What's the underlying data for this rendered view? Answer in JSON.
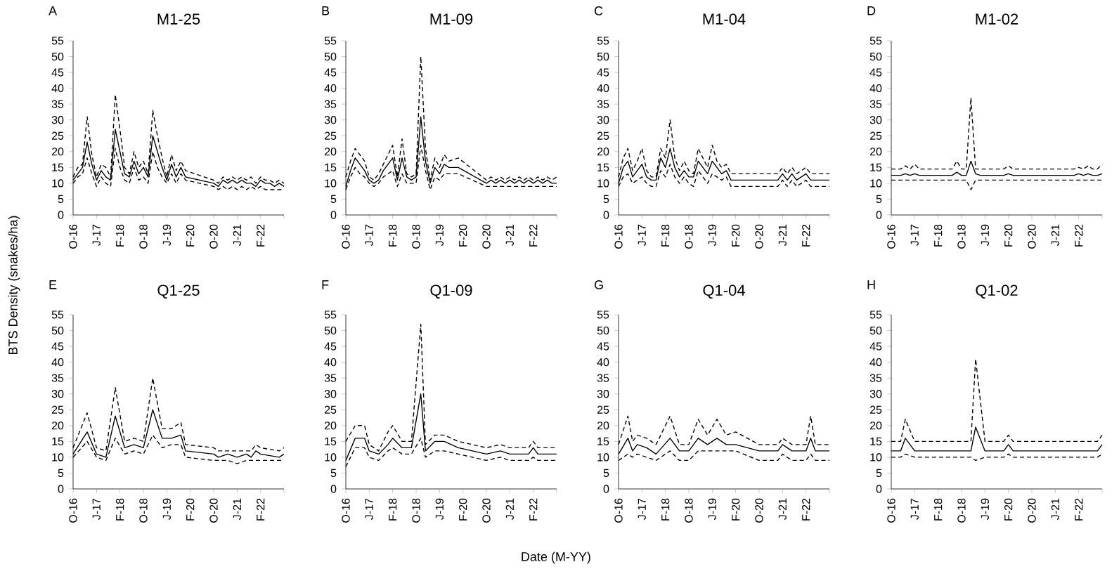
{
  "chart_data": [
    {
      "type": "line",
      "title": "M1-25",
      "annotations": [
        "A"
      ],
      "ylabel": "BTS Density (snakes/ha)",
      "ylim": [
        0,
        55
      ],
      "yticks": [
        0,
        5,
        10,
        15,
        20,
        25,
        30,
        35,
        40,
        45,
        50,
        55
      ],
      "categories": [
        "O-16",
        null,
        null,
        null,
        null,
        "J-17",
        null,
        null,
        null,
        null,
        "F-18",
        null,
        null,
        null,
        null,
        "O-18",
        null,
        null,
        null,
        null,
        "J-19",
        null,
        null,
        null,
        null,
        "F-20",
        null,
        null,
        null,
        null,
        "O-20",
        null,
        null,
        null,
        null,
        "J-21",
        null,
        null,
        null,
        null,
        "F-22",
        null,
        null,
        null,
        null,
        null
      ],
      "series": [
        {
          "color": "#000000",
          "line_style": "dashed",
          "values": [
            12,
            15,
            16,
            31,
            19,
            12,
            16,
            15,
            12,
            38,
            27,
            15,
            13,
            20,
            15,
            17,
            13,
            33,
            25,
            18,
            12,
            19,
            14,
            17,
            14,
            null,
            null,
            null,
            null,
            null,
            11,
            10,
            12,
            11,
            12,
            11,
            12,
            11,
            12,
            10,
            12,
            11,
            11,
            10,
            11,
            10
          ]
        },
        {
          "color": "#000000",
          "line_style": "solid",
          "values": [
            11,
            13,
            15,
            23,
            16,
            11,
            14,
            12,
            11,
            27,
            20,
            13,
            12,
            17,
            13,
            15,
            12,
            25,
            20,
            15,
            11,
            16,
            12,
            15,
            12,
            null,
            null,
            null,
            null,
            null,
            10,
            9,
            11,
            10,
            11,
            10,
            11,
            10,
            10,
            9,
            11,
            10,
            10,
            9,
            10,
            9
          ]
        },
        {
          "color": "#000000",
          "line_style": "dashed",
          "values": [
            10,
            12,
            13,
            18,
            13,
            9,
            12,
            10,
            9,
            21,
            15,
            11,
            10,
            15,
            11,
            12,
            10,
            20,
            15,
            12,
            10,
            13,
            10,
            13,
            11,
            null,
            null,
            null,
            null,
            null,
            9,
            8,
            9,
            8,
            9,
            8,
            9,
            8,
            9,
            8,
            9,
            8,
            8,
            8,
            8,
            8
          ]
        }
      ]
    },
    {
      "type": "line",
      "title": "M1-09",
      "annotations": [
        "B"
      ],
      "ylim": [
        0,
        55
      ],
      "yticks": [
        0,
        5,
        10,
        15,
        20,
        25,
        30,
        35,
        40,
        45,
        50,
        55
      ],
      "categories": [
        "O-16",
        null,
        null,
        null,
        null,
        "J-17",
        null,
        null,
        null,
        null,
        "F-18",
        null,
        null,
        null,
        null,
        "O-18",
        null,
        null,
        null,
        null,
        "J-19",
        null,
        null,
        null,
        null,
        "F-20",
        null,
        null,
        null,
        null,
        "O-20",
        null,
        null,
        null,
        null,
        "J-21",
        null,
        null,
        null,
        null,
        "F-22",
        null,
        null,
        null,
        null,
        null
      ],
      "series": [
        {
          "color": "#000000",
          "line_style": "dashed",
          "values": [
            12,
            17,
            21,
            19,
            17,
            12,
            11,
            13,
            16,
            19,
            22,
            12,
            24,
            13,
            12,
            13,
            50,
            21,
            11,
            18,
            15,
            19,
            17,
            null,
            18,
            null,
            null,
            null,
            null,
            null,
            11,
            12,
            11,
            12,
            11,
            12,
            11,
            12,
            11,
            12,
            11,
            12,
            11,
            12,
            11,
            12
          ]
        },
        {
          "color": "#000000",
          "line_style": "solid",
          "values": [
            9,
            14,
            18,
            16,
            14,
            11,
            10,
            11,
            14,
            16,
            18,
            11,
            18,
            12,
            11,
            12,
            31,
            17,
            10,
            15,
            13,
            16,
            15,
            null,
            15,
            null,
            null,
            null,
            null,
            null,
            10,
            11,
            10,
            11,
            10,
            11,
            10,
            11,
            10,
            11,
            10,
            11,
            10,
            11,
            10,
            10
          ]
        },
        {
          "color": "#000000",
          "line_style": "dashed",
          "values": [
            8,
            12,
            15,
            13,
            12,
            10,
            9,
            10,
            12,
            13,
            14,
            9,
            13,
            10,
            10,
            10,
            22,
            14,
            8,
            12,
            11,
            13,
            13,
            null,
            13,
            null,
            null,
            null,
            null,
            null,
            9,
            9,
            9,
            9,
            9,
            9,
            9,
            9,
            9,
            9,
            9,
            9,
            9,
            9,
            9,
            9
          ]
        }
      ]
    },
    {
      "type": "line",
      "title": "M1-04",
      "annotations": [
        "C"
      ],
      "ylim": [
        0,
        55
      ],
      "yticks": [
        0,
        5,
        10,
        15,
        20,
        25,
        30,
        35,
        40,
        45,
        50,
        55
      ],
      "categories": [
        "O-16",
        null,
        null,
        null,
        null,
        "J-17",
        null,
        null,
        null,
        null,
        "F-18",
        null,
        null,
        null,
        null,
        "O-18",
        null,
        null,
        null,
        null,
        "J-19",
        null,
        null,
        null,
        null,
        "F-20",
        null,
        null,
        null,
        null,
        "O-20",
        null,
        null,
        null,
        null,
        "J-21",
        null,
        null,
        null,
        null,
        "F-22",
        null,
        null,
        null,
        null,
        null
      ],
      "series": [
        {
          "color": "#000000",
          "line_style": "dashed",
          "values": [
            12,
            18,
            21,
            14,
            17,
            21,
            14,
            12,
            12,
            21,
            18,
            30,
            18,
            14,
            17,
            14,
            13,
            21,
            18,
            15,
            22,
            17,
            15,
            16,
            13,
            null,
            null,
            null,
            null,
            null,
            null,
            null,
            null,
            null,
            13,
            15,
            13,
            15,
            13,
            14,
            15,
            13,
            13,
            13,
            13,
            13
          ]
        },
        {
          "color": "#000000",
          "line_style": "solid",
          "values": [
            10,
            15,
            17,
            12,
            14,
            16,
            12,
            11,
            11,
            18,
            15,
            21,
            15,
            12,
            14,
            12,
            12,
            17,
            15,
            13,
            17,
            15,
            13,
            14,
            11,
            null,
            null,
            null,
            null,
            null,
            null,
            null,
            null,
            null,
            11,
            13,
            11,
            13,
            11,
            12,
            13,
            11,
            11,
            11,
            11,
            11
          ]
        },
        {
          "color": "#000000",
          "line_style": "dashed",
          "values": [
            9,
            12,
            13,
            10,
            11,
            12,
            10,
            9,
            9,
            14,
            12,
            16,
            12,
            10,
            12,
            10,
            9,
            14,
            12,
            10,
            13,
            12,
            11,
            12,
            9,
            null,
            null,
            null,
            null,
            null,
            null,
            null,
            null,
            null,
            9,
            11,
            9,
            11,
            9,
            10,
            11,
            9,
            9,
            9,
            9,
            9
          ]
        }
      ]
    },
    {
      "type": "line",
      "title": "M1-02",
      "annotations": [
        "D"
      ],
      "ylim": [
        0,
        55
      ],
      "yticks": [
        0,
        5,
        10,
        15,
        20,
        25,
        30,
        35,
        40,
        45,
        50,
        55
      ],
      "categories": [
        "O-16",
        null,
        null,
        null,
        null,
        "J-17",
        null,
        null,
        null,
        null,
        "F-18",
        null,
        null,
        null,
        null,
        "O-18",
        null,
        null,
        null,
        null,
        "J-19",
        null,
        null,
        null,
        null,
        "F-20",
        null,
        null,
        null,
        null,
        "O-20",
        null,
        null,
        null,
        null,
        "J-21",
        null,
        null,
        null,
        null,
        "F-22",
        null,
        null,
        null,
        null,
        null
      ],
      "series": [
        {
          "color": "#000000",
          "line_style": "dashed",
          "values": [
            14.5,
            null,
            14.5,
            15.5,
            14.5,
            16,
            14.5,
            null,
            null,
            null,
            null,
            null,
            null,
            14.5,
            17,
            14.5,
            14.5,
            37,
            14.5,
            14.5,
            null,
            null,
            null,
            null,
            14.5,
            15.5,
            14.5,
            null,
            null,
            null,
            null,
            null,
            null,
            null,
            null,
            null,
            null,
            null,
            null,
            14.5,
            15,
            14.5,
            15.5,
            14.5,
            14.5,
            16
          ]
        },
        {
          "color": "#000000",
          "line_style": "solid",
          "values": [
            12.5,
            null,
            12.5,
            13,
            12.5,
            13,
            12.5,
            null,
            null,
            null,
            null,
            null,
            null,
            12.5,
            13.5,
            12.5,
            12.5,
            17,
            13,
            12.5,
            null,
            null,
            null,
            null,
            12.5,
            13,
            12.5,
            null,
            null,
            null,
            null,
            null,
            null,
            null,
            null,
            null,
            null,
            null,
            null,
            12.5,
            13,
            12.5,
            13,
            12.5,
            12.5,
            13
          ]
        },
        {
          "color": "#000000",
          "line_style": "dashed",
          "values": [
            11,
            null,
            11,
            11,
            11,
            11,
            11,
            null,
            null,
            null,
            null,
            null,
            null,
            11,
            11,
            11,
            11,
            8,
            11,
            11,
            null,
            null,
            null,
            null,
            11,
            11,
            11,
            null,
            null,
            null,
            null,
            null,
            null,
            null,
            null,
            null,
            null,
            null,
            null,
            11,
            11,
            11,
            11,
            11,
            11,
            11
          ]
        }
      ]
    },
    {
      "type": "line",
      "title": "Q1-25",
      "annotations": [
        "E"
      ],
      "ylim": [
        0,
        55
      ],
      "yticks": [
        0,
        5,
        10,
        15,
        20,
        25,
        30,
        35,
        40,
        45,
        50,
        55
      ],
      "categories": [
        "O-16",
        null,
        null,
        null,
        null,
        "J-17",
        null,
        null,
        null,
        null,
        "F-18",
        null,
        null,
        null,
        null,
        "O-18",
        null,
        null,
        null,
        null,
        "J-19",
        null,
        null,
        null,
        null,
        "F-20",
        null,
        null,
        null,
        null,
        "O-20",
        null,
        null,
        null,
        null,
        "J-21",
        null,
        null,
        null,
        null,
        "F-22",
        null,
        null,
        null,
        null,
        null
      ],
      "series": [
        {
          "color": "#000000",
          "line_style": "dashed",
          "values": [
            13,
            null,
            null,
            24,
            null,
            13,
            null,
            12,
            null,
            32,
            null,
            15,
            null,
            16,
            null,
            15,
            null,
            35,
            null,
            19,
            null,
            19,
            null,
            21,
            14,
            null,
            null,
            null,
            null,
            null,
            13,
            12,
            null,
            12,
            null,
            12,
            null,
            12,
            12,
            14,
            13,
            null,
            null,
            null,
            12,
            13
          ]
        },
        {
          "color": "#000000",
          "line_style": "solid",
          "values": [
            11,
            null,
            null,
            18,
            null,
            11,
            null,
            10,
            null,
            23,
            null,
            13,
            null,
            14,
            null,
            13,
            null,
            25,
            null,
            16,
            null,
            16,
            null,
            17,
            12,
            null,
            null,
            null,
            null,
            null,
            11,
            10,
            null,
            11,
            null,
            10,
            null,
            11,
            10,
            12,
            11,
            null,
            null,
            null,
            10,
            11
          ]
        },
        {
          "color": "#000000",
          "line_style": "dashed",
          "values": [
            10,
            null,
            null,
            15,
            null,
            10,
            null,
            9,
            null,
            16,
            null,
            11,
            null,
            12,
            null,
            11,
            null,
            17,
            null,
            13,
            null,
            14,
            null,
            14,
            10,
            null,
            null,
            null,
            null,
            null,
            9,
            9,
            null,
            9,
            null,
            8,
            null,
            9,
            9,
            9,
            9,
            null,
            null,
            null,
            9,
            9
          ]
        }
      ]
    },
    {
      "type": "line",
      "title": "Q1-09",
      "annotations": [
        "F"
      ],
      "xlabel": "Date (M-YY)",
      "ylim": [
        0,
        55
      ],
      "yticks": [
        0,
        5,
        10,
        15,
        20,
        25,
        30,
        35,
        40,
        45,
        50,
        55
      ],
      "categories": [
        "O-16",
        null,
        null,
        null,
        null,
        "J-17",
        null,
        null,
        null,
        null,
        "F-18",
        null,
        null,
        null,
        null,
        "O-18",
        null,
        null,
        null,
        null,
        "J-19",
        null,
        null,
        null,
        null,
        "F-20",
        null,
        null,
        null,
        null,
        "O-20",
        null,
        null,
        null,
        null,
        "J-21",
        null,
        null,
        null,
        null,
        "F-22",
        null,
        null,
        null,
        null,
        null
      ],
      "series": [
        {
          "color": "#000000",
          "line_style": "dashed",
          "values": [
            15,
            null,
            20,
            null,
            20,
            14,
            null,
            12,
            null,
            18,
            20,
            null,
            15,
            null,
            15,
            null,
            52,
            14,
            null,
            17,
            null,
            17,
            null,
            null,
            15,
            null,
            null,
            null,
            null,
            null,
            13,
            null,
            null,
            14,
            null,
            13,
            null,
            null,
            null,
            13,
            15,
            13,
            null,
            null,
            null,
            13
          ]
        },
        {
          "color": "#000000",
          "line_style": "solid",
          "values": [
            9,
            null,
            16,
            null,
            16,
            12,
            null,
            11,
            null,
            14,
            16,
            null,
            13,
            null,
            13,
            null,
            30,
            12,
            null,
            15,
            null,
            15,
            null,
            null,
            13,
            null,
            null,
            null,
            null,
            null,
            11,
            null,
            null,
            12,
            null,
            11,
            null,
            null,
            null,
            11,
            13,
            11,
            null,
            null,
            null,
            11
          ]
        },
        {
          "color": "#000000",
          "line_style": "dashed",
          "values": [
            7,
            null,
            13,
            null,
            13,
            10,
            null,
            9,
            null,
            12,
            13,
            null,
            11,
            null,
            11,
            null,
            16,
            10,
            null,
            12,
            null,
            12,
            null,
            null,
            11,
            null,
            null,
            null,
            null,
            null,
            9,
            null,
            null,
            10,
            null,
            9,
            null,
            null,
            null,
            9,
            10,
            9,
            null,
            null,
            null,
            9
          ]
        }
      ]
    },
    {
      "type": "line",
      "title": "Q1-04",
      "annotations": [
        "G"
      ],
      "ylim": [
        0,
        55
      ],
      "yticks": [
        0,
        5,
        10,
        15,
        20,
        25,
        30,
        35,
        40,
        45,
        50,
        55
      ],
      "categories": [
        "O-16",
        null,
        null,
        null,
        null,
        "J-17",
        null,
        null,
        null,
        null,
        "F-18",
        null,
        null,
        null,
        null,
        "O-18",
        null,
        null,
        null,
        null,
        "J-19",
        null,
        null,
        null,
        null,
        "F-20",
        null,
        null,
        null,
        null,
        "O-20",
        null,
        null,
        null,
        null,
        "J-21",
        null,
        null,
        null,
        null,
        "F-22",
        null,
        null,
        null,
        null,
        null
      ],
      "series": [
        {
          "color": "#000000",
          "line_style": "dashed",
          "values": [
            14,
            null,
            23,
            15,
            17,
            null,
            16,
            null,
            14,
            null,
            null,
            23,
            null,
            14,
            null,
            14,
            null,
            22,
            null,
            17,
            null,
            22,
            null,
            17,
            null,
            18,
            null,
            null,
            null,
            null,
            14,
            null,
            null,
            null,
            14,
            16,
            null,
            14,
            null,
            null,
            14,
            23,
            14,
            null,
            null,
            14
          ]
        },
        {
          "color": "#000000",
          "line_style": "solid",
          "values": [
            11,
            null,
            16,
            12,
            14,
            null,
            13,
            null,
            11,
            null,
            null,
            16,
            null,
            12,
            null,
            12,
            null,
            16,
            null,
            14,
            null,
            16,
            null,
            14,
            null,
            14,
            null,
            null,
            null,
            null,
            12,
            null,
            null,
            null,
            12,
            14,
            null,
            12,
            null,
            null,
            12,
            16,
            12,
            null,
            null,
            12
          ]
        },
        {
          "color": "#000000",
          "line_style": "dashed",
          "values": [
            9,
            null,
            11,
            10,
            11,
            null,
            10,
            null,
            9,
            null,
            null,
            12,
            null,
            9,
            null,
            9,
            null,
            12,
            null,
            12,
            null,
            12,
            null,
            12,
            null,
            12,
            null,
            null,
            null,
            null,
            9,
            null,
            null,
            null,
            9,
            11,
            null,
            9,
            null,
            null,
            9,
            11,
            9,
            null,
            null,
            9
          ]
        }
      ]
    },
    {
      "type": "line",
      "title": "Q1-02",
      "annotations": [
        "H"
      ],
      "ylim": [
        0,
        55
      ],
      "yticks": [
        0,
        5,
        10,
        15,
        20,
        25,
        30,
        35,
        40,
        45,
        50,
        55
      ],
      "categories": [
        "O-16",
        null,
        null,
        null,
        null,
        "J-17",
        null,
        null,
        null,
        null,
        "F-18",
        null,
        null,
        null,
        null,
        "O-18",
        null,
        null,
        null,
        null,
        "J-19",
        null,
        null,
        null,
        null,
        "F-20",
        null,
        null,
        null,
        null,
        "O-20",
        null,
        null,
        null,
        null,
        "J-21",
        null,
        null,
        null,
        null,
        "F-22",
        null,
        null,
        null,
        null,
        null
      ],
      "series": [
        {
          "color": "#000000",
          "line_style": "dashed",
          "values": [
            15,
            null,
            15,
            22,
            null,
            15,
            null,
            null,
            null,
            null,
            null,
            null,
            null,
            null,
            null,
            null,
            null,
            15,
            41,
            null,
            15,
            null,
            null,
            null,
            15,
            17,
            15,
            null,
            null,
            null,
            null,
            null,
            null,
            null,
            null,
            null,
            null,
            null,
            null,
            null,
            null,
            null,
            null,
            null,
            15,
            17
          ]
        },
        {
          "color": "#000000",
          "line_style": "solid",
          "values": [
            12,
            null,
            12,
            16,
            null,
            12,
            null,
            null,
            null,
            null,
            null,
            null,
            null,
            null,
            null,
            null,
            null,
            12,
            19.5,
            null,
            12,
            null,
            null,
            null,
            12,
            14,
            12,
            null,
            null,
            null,
            null,
            null,
            null,
            null,
            null,
            null,
            null,
            null,
            null,
            null,
            null,
            null,
            null,
            null,
            12,
            14
          ]
        },
        {
          "color": "#000000",
          "line_style": "dashed",
          "values": [
            10,
            null,
            10,
            11,
            null,
            10,
            null,
            null,
            null,
            null,
            null,
            null,
            null,
            null,
            null,
            null,
            null,
            10,
            9,
            null,
            10,
            null,
            null,
            null,
            10,
            11,
            10,
            null,
            null,
            null,
            null,
            null,
            null,
            null,
            null,
            null,
            null,
            null,
            null,
            null,
            null,
            null,
            null,
            null,
            10,
            11
          ]
        }
      ]
    }
  ]
}
